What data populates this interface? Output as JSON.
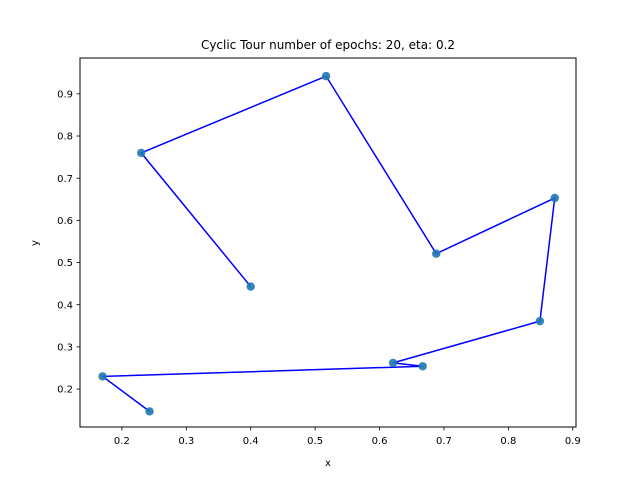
{
  "chart_data": {
    "type": "scatter",
    "title": "Cyclic Tour number of epochs: 20, eta: 0.2",
    "xlabel": "x",
    "ylabel": "y",
    "xlim": [
      0.135,
      0.905
    ],
    "ylim": [
      0.11,
      0.985
    ],
    "xticks": [
      0.2,
      0.3,
      0.4,
      0.5,
      0.6,
      0.7,
      0.8,
      0.9
    ],
    "yticks": [
      0.2,
      0.3,
      0.4,
      0.5,
      0.6,
      0.7,
      0.8,
      0.9
    ],
    "grid": false,
    "point_color": "#1f77b4",
    "line_color": "#0000ff",
    "points": [
      {
        "x": 0.4,
        "y": 0.443
      },
      {
        "x": 0.23,
        "y": 0.76
      },
      {
        "x": 0.517,
        "y": 0.942
      },
      {
        "x": 0.688,
        "y": 0.521
      },
      {
        "x": 0.872,
        "y": 0.653
      },
      {
        "x": 0.849,
        "y": 0.361
      },
      {
        "x": 0.621,
        "y": 0.262
      },
      {
        "x": 0.667,
        "y": 0.254
      },
      {
        "x": 0.17,
        "y": 0.23
      },
      {
        "x": 0.243,
        "y": 0.147
      }
    ]
  }
}
